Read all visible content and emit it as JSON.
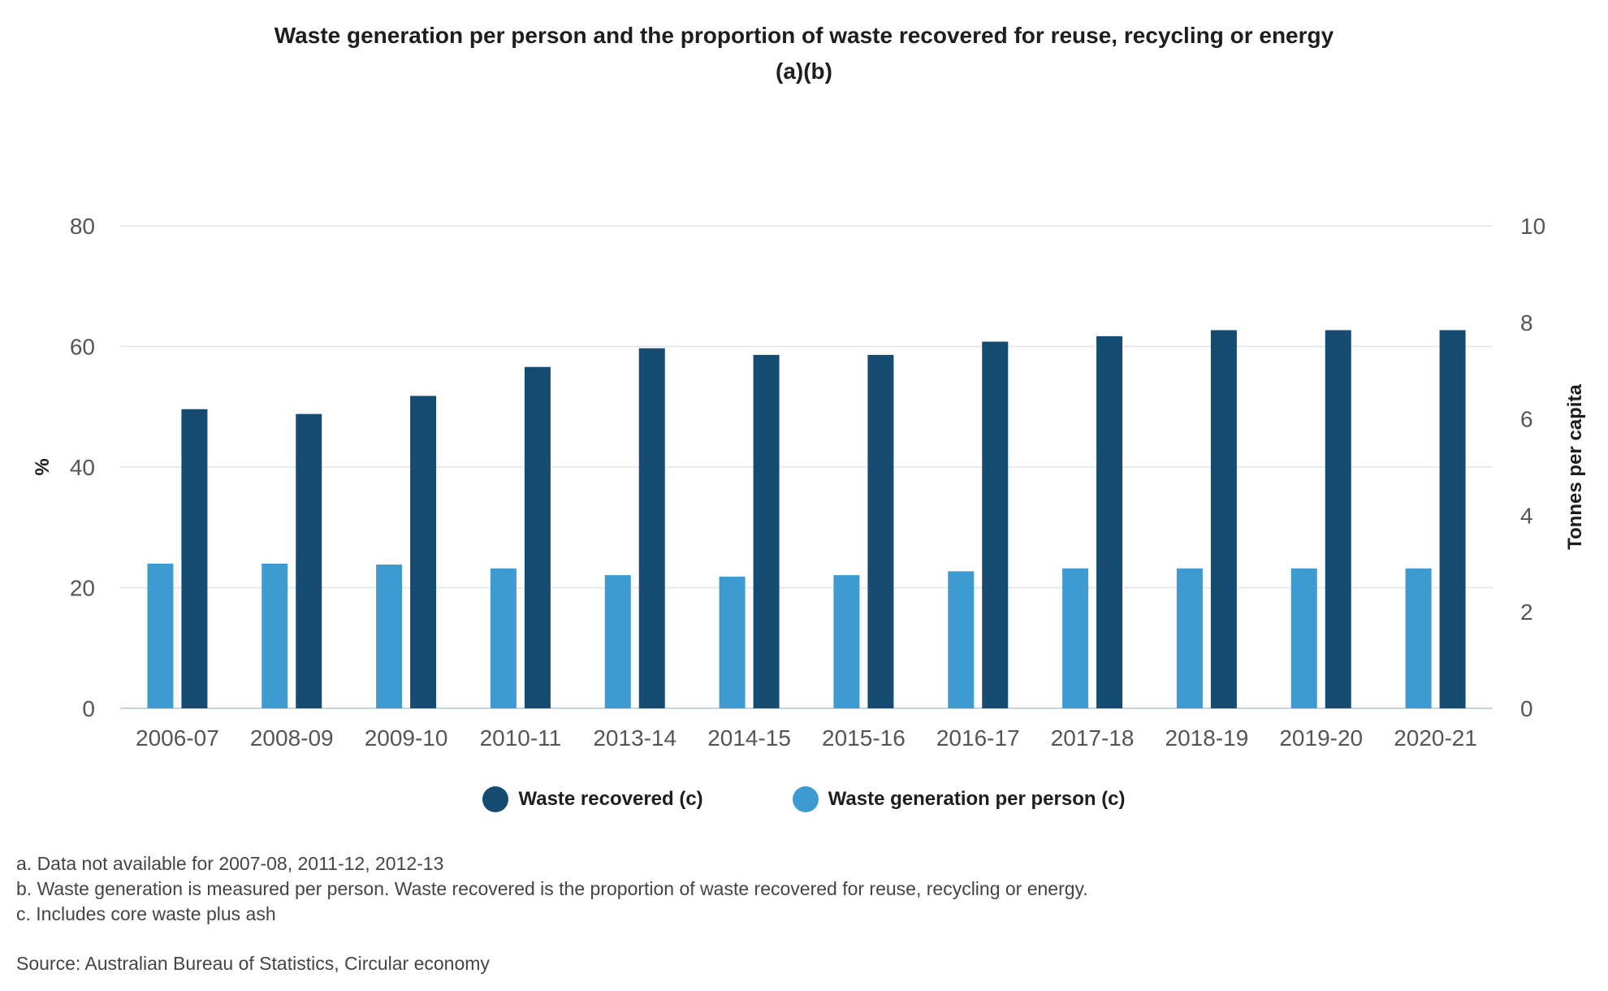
{
  "chart_data": {
    "type": "bar",
    "title": "Waste generation per person and the proportion of waste recovered for reuse, recycling or energy",
    "subtitle": "(a)(b)",
    "categories": [
      "2006-07",
      "2008-09",
      "2009-10",
      "2010-11",
      "2013-14",
      "2014-15",
      "2015-16",
      "2016-17",
      "2017-18",
      "2018-19",
      "2019-20",
      "2020-21"
    ],
    "series": [
      {
        "name": "Waste generation per person (c)",
        "axis": "right",
        "color": "#3e9bd2",
        "values": [
          3.0,
          3.0,
          2.98,
          2.9,
          2.76,
          2.73,
          2.76,
          2.84,
          2.9,
          2.9,
          2.9,
          2.9
        ]
      },
      {
        "name": "Waste recovered (c)",
        "axis": "left",
        "color": "#164b72",
        "values": [
          49.6,
          48.8,
          51.8,
          56.6,
          59.7,
          58.6,
          58.6,
          60.8,
          61.7,
          62.7,
          62.7,
          62.7
        ]
      }
    ],
    "ylabel": "%",
    "ylabel_right": "Tonnes per capita",
    "ylim": [
      0,
      80
    ],
    "ylim_right": [
      0,
      10
    ],
    "yticks": [
      0,
      20,
      40,
      60,
      80
    ],
    "yticks_right": [
      0,
      2,
      4,
      6,
      8,
      10
    ],
    "grid": true,
    "legend_position": "bottom"
  },
  "legend": [
    {
      "label": "Waste recovered (c)",
      "color": "#164b72"
    },
    {
      "label": "Waste generation per person (c)",
      "color": "#3e9bd2"
    }
  ],
  "notes": [
    "a. Data not available for 2007-08, 2011-12, 2012-13",
    "b. Waste generation is measured per person. Waste recovered is the proportion of waste recovered for reuse, recycling or energy.",
    "c. Includes core waste plus ash"
  ],
  "source": "Source: Australian Bureau of Statistics, Circular economy"
}
